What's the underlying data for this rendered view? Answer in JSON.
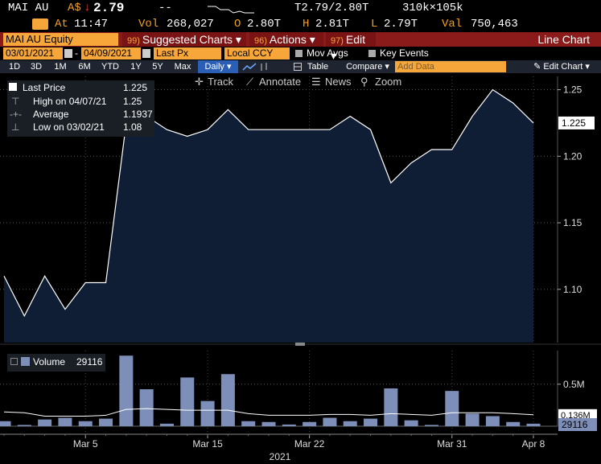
{
  "header": {
    "ticker": "MAI AU",
    "currency": "A$",
    "arrow": "↓",
    "last": "2.79",
    "dashes": "--",
    "price_range": "T2.79/2.80T",
    "size": "310k×105k",
    "at_label": "At",
    "time": "11:47",
    "vol_label": "Vol",
    "vol": "268,027",
    "o_label": "O",
    "open": "2.80T",
    "h_label": "H",
    "high": "2.81T",
    "l_label": "L",
    "low": "2.79T",
    "val_label": "Val",
    "val": "750,463"
  },
  "menubar": {
    "security": "MAI AU Equity",
    "suggested_num": "99)",
    "suggested": "Suggested Charts ▾",
    "actions_num": "96)",
    "actions": "Actions ▾",
    "edit_num": "97)",
    "edit": "Edit ▾",
    "title": "Line Chart"
  },
  "settings": {
    "start_date": "03/01/2021",
    "dash": "-",
    "end_date": "04/09/2021",
    "field": "Last Px",
    "ccy": "Local CCY",
    "mov_avgs": "Mov Avgs",
    "key_events": "Key Events"
  },
  "periods": {
    "items": [
      "1D",
      "3D",
      "1M",
      "6M",
      "YTD",
      "1Y",
      "5Y",
      "Max"
    ],
    "freq": "Daily ▾",
    "table": "Table",
    "compare": "Compare ▾",
    "add_data_placeholder": "Add Data",
    "edit_chart": "✎ Edit Chart ▾"
  },
  "tools": {
    "track": "Track",
    "annotate": "Annotate",
    "news": "News",
    "zoom": "Zoom"
  },
  "legend": {
    "last_price_label": "Last Price",
    "last_price": "1.225",
    "high_label": "High on 04/07/21",
    "high": "1.25",
    "average_label": "Average",
    "average": "1.1937",
    "low_label": "Low on 03/02/21",
    "low": "1.08"
  },
  "volume_legend": {
    "label": "Volume",
    "value": "29116"
  },
  "chart_data": [
    {
      "type": "area",
      "series": [
        {
          "name": "Last Price",
          "values": [
            1.11,
            1.08,
            1.11,
            1.085,
            1.105,
            1.105,
            1.225,
            1.23,
            1.22,
            1.215,
            1.22,
            1.235,
            1.22,
            1.22,
            1.22,
            1.22,
            1.22,
            1.23,
            1.22,
            1.18,
            1.195,
            1.205,
            1.205,
            1.23,
            1.25,
            1.24,
            1.225
          ]
        }
      ],
      "ylim": [
        1.06,
        1.26
      ],
      "yticks": [
        "1.10",
        "1.15",
        "1.20",
        "1.25"
      ],
      "last_label": "1.225",
      "color": "#0f1e35"
    },
    {
      "type": "bar",
      "series": [
        {
          "name": "Volume",
          "values": [
            0.06,
            0.015,
            0.08,
            0.1,
            0.06,
            0.09,
            0.84,
            0.44,
            0.03,
            0.58,
            0.3,
            0.62,
            0.06,
            0.05,
            0.02,
            0.05,
            0.1,
            0.06,
            0.09,
            0.45,
            0.07,
            0.015,
            0.42,
            0.15,
            0.12,
            0.05,
            0.03
          ]
        }
      ],
      "moving_avg": [
        0.17,
        0.16,
        0.12,
        0.12,
        0.12,
        0.13,
        0.2,
        0.21,
        0.2,
        0.19,
        0.19,
        0.19,
        0.15,
        0.13,
        0.13,
        0.13,
        0.14,
        0.14,
        0.13,
        0.15,
        0.14,
        0.13,
        0.16,
        0.16,
        0.16,
        0.15,
        0.136
      ],
      "ylim": [
        0,
        0.9
      ],
      "yticks": [
        "0.5M"
      ],
      "ma_label": "0.136M",
      "last_label": "29116",
      "x_ticks": [
        {
          "label": "Mar 5",
          "index": 4
        },
        {
          "label": "Mar 15",
          "index": 10
        },
        {
          "label": "Mar 22",
          "index": 15
        },
        {
          "label": "Mar 31",
          "index": 22
        },
        {
          "label": "Apr 8",
          "index": 26
        }
      ],
      "year": "2021"
    }
  ]
}
